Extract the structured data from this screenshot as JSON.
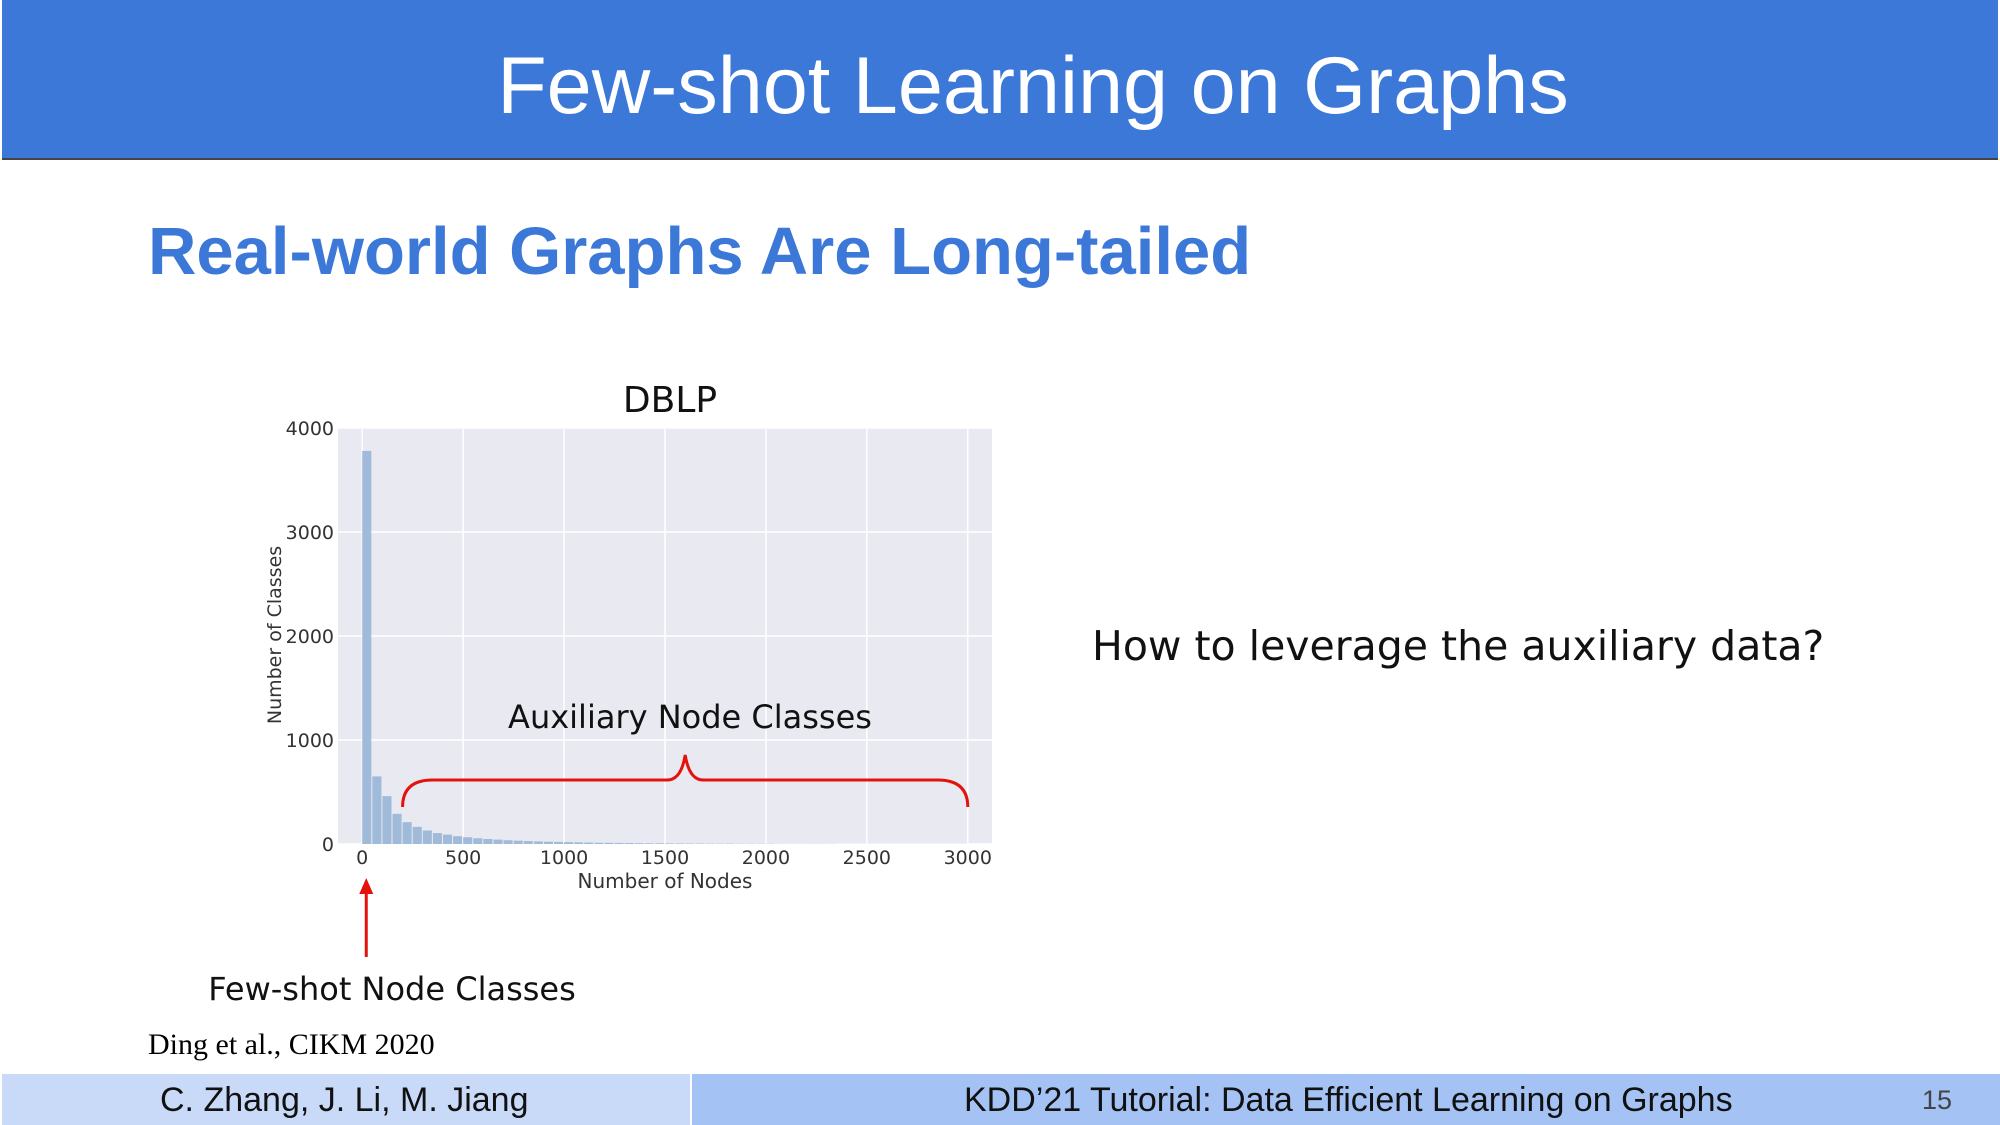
{
  "slide": {
    "title": "Few-shot Learning on Graphs",
    "subtitle": "Real-world Graphs Are Long-tailed",
    "question": "How to leverage the auxiliary data?",
    "citation": "Ding et al., CIKM 2020"
  },
  "footer": {
    "authors": "C. Zhang, J. Li, M. Jiang",
    "event": "KDD’21 Tutorial: Data Efficient Learning on Graphs",
    "page": "15"
  },
  "colors": {
    "title_bar": "#3c78d8",
    "subtitle": "#3c78d8",
    "bar_fill": "#9fbbd9",
    "plot_bg": "#e9e9f1",
    "annotation": "#e3120b"
  },
  "chart_data": {
    "type": "bar",
    "title": "DBLP",
    "xlabel": "Number of Nodes",
    "ylabel": "Number of Classes",
    "xlim": [
      -120,
      3120
    ],
    "ylim": [
      0,
      4000
    ],
    "xticks": [
      0,
      500,
      1000,
      1500,
      2000,
      2500,
      3000
    ],
    "yticks": [
      0,
      1000,
      2000,
      3000,
      4000
    ],
    "grid": true,
    "bin_width": 50,
    "bin_starts": [
      0,
      50,
      100,
      150,
      200,
      250,
      300,
      350,
      400,
      450,
      500,
      550,
      600,
      650,
      700,
      750,
      800,
      850,
      900,
      950,
      1000,
      1050,
      1100,
      1150,
      1200,
      1250,
      1300,
      1350,
      1400,
      1450,
      1500,
      1550,
      1600,
      1650,
      1700,
      1750,
      1800,
      1850,
      1900,
      1950,
      2000,
      2050,
      2100,
      2150,
      2200,
      2250,
      2300,
      2350,
      2400,
      2450,
      2500,
      2550,
      2600,
      2650,
      2700,
      2750,
      2800,
      2850,
      2900,
      2950
    ],
    "values": [
      3780,
      650,
      460,
      290,
      210,
      165,
      130,
      105,
      90,
      75,
      65,
      55,
      48,
      42,
      36,
      32,
      28,
      25,
      22,
      20,
      18,
      16,
      14,
      12,
      11,
      10,
      9,
      8,
      7,
      7,
      6,
      6,
      5,
      5,
      4,
      4,
      4,
      3,
      3,
      3,
      3,
      2,
      2,
      2,
      2,
      2,
      2,
      1,
      1,
      1,
      1,
      1,
      1,
      1,
      1,
      1,
      1,
      1,
      1,
      1
    ],
    "annotations": [
      {
        "label": "Auxiliary Node Classes",
        "type": "brace",
        "x_range": [
          200,
          3000
        ]
      },
      {
        "label": "Few-shot Node Classes",
        "type": "arrow",
        "x": 20
      }
    ]
  }
}
